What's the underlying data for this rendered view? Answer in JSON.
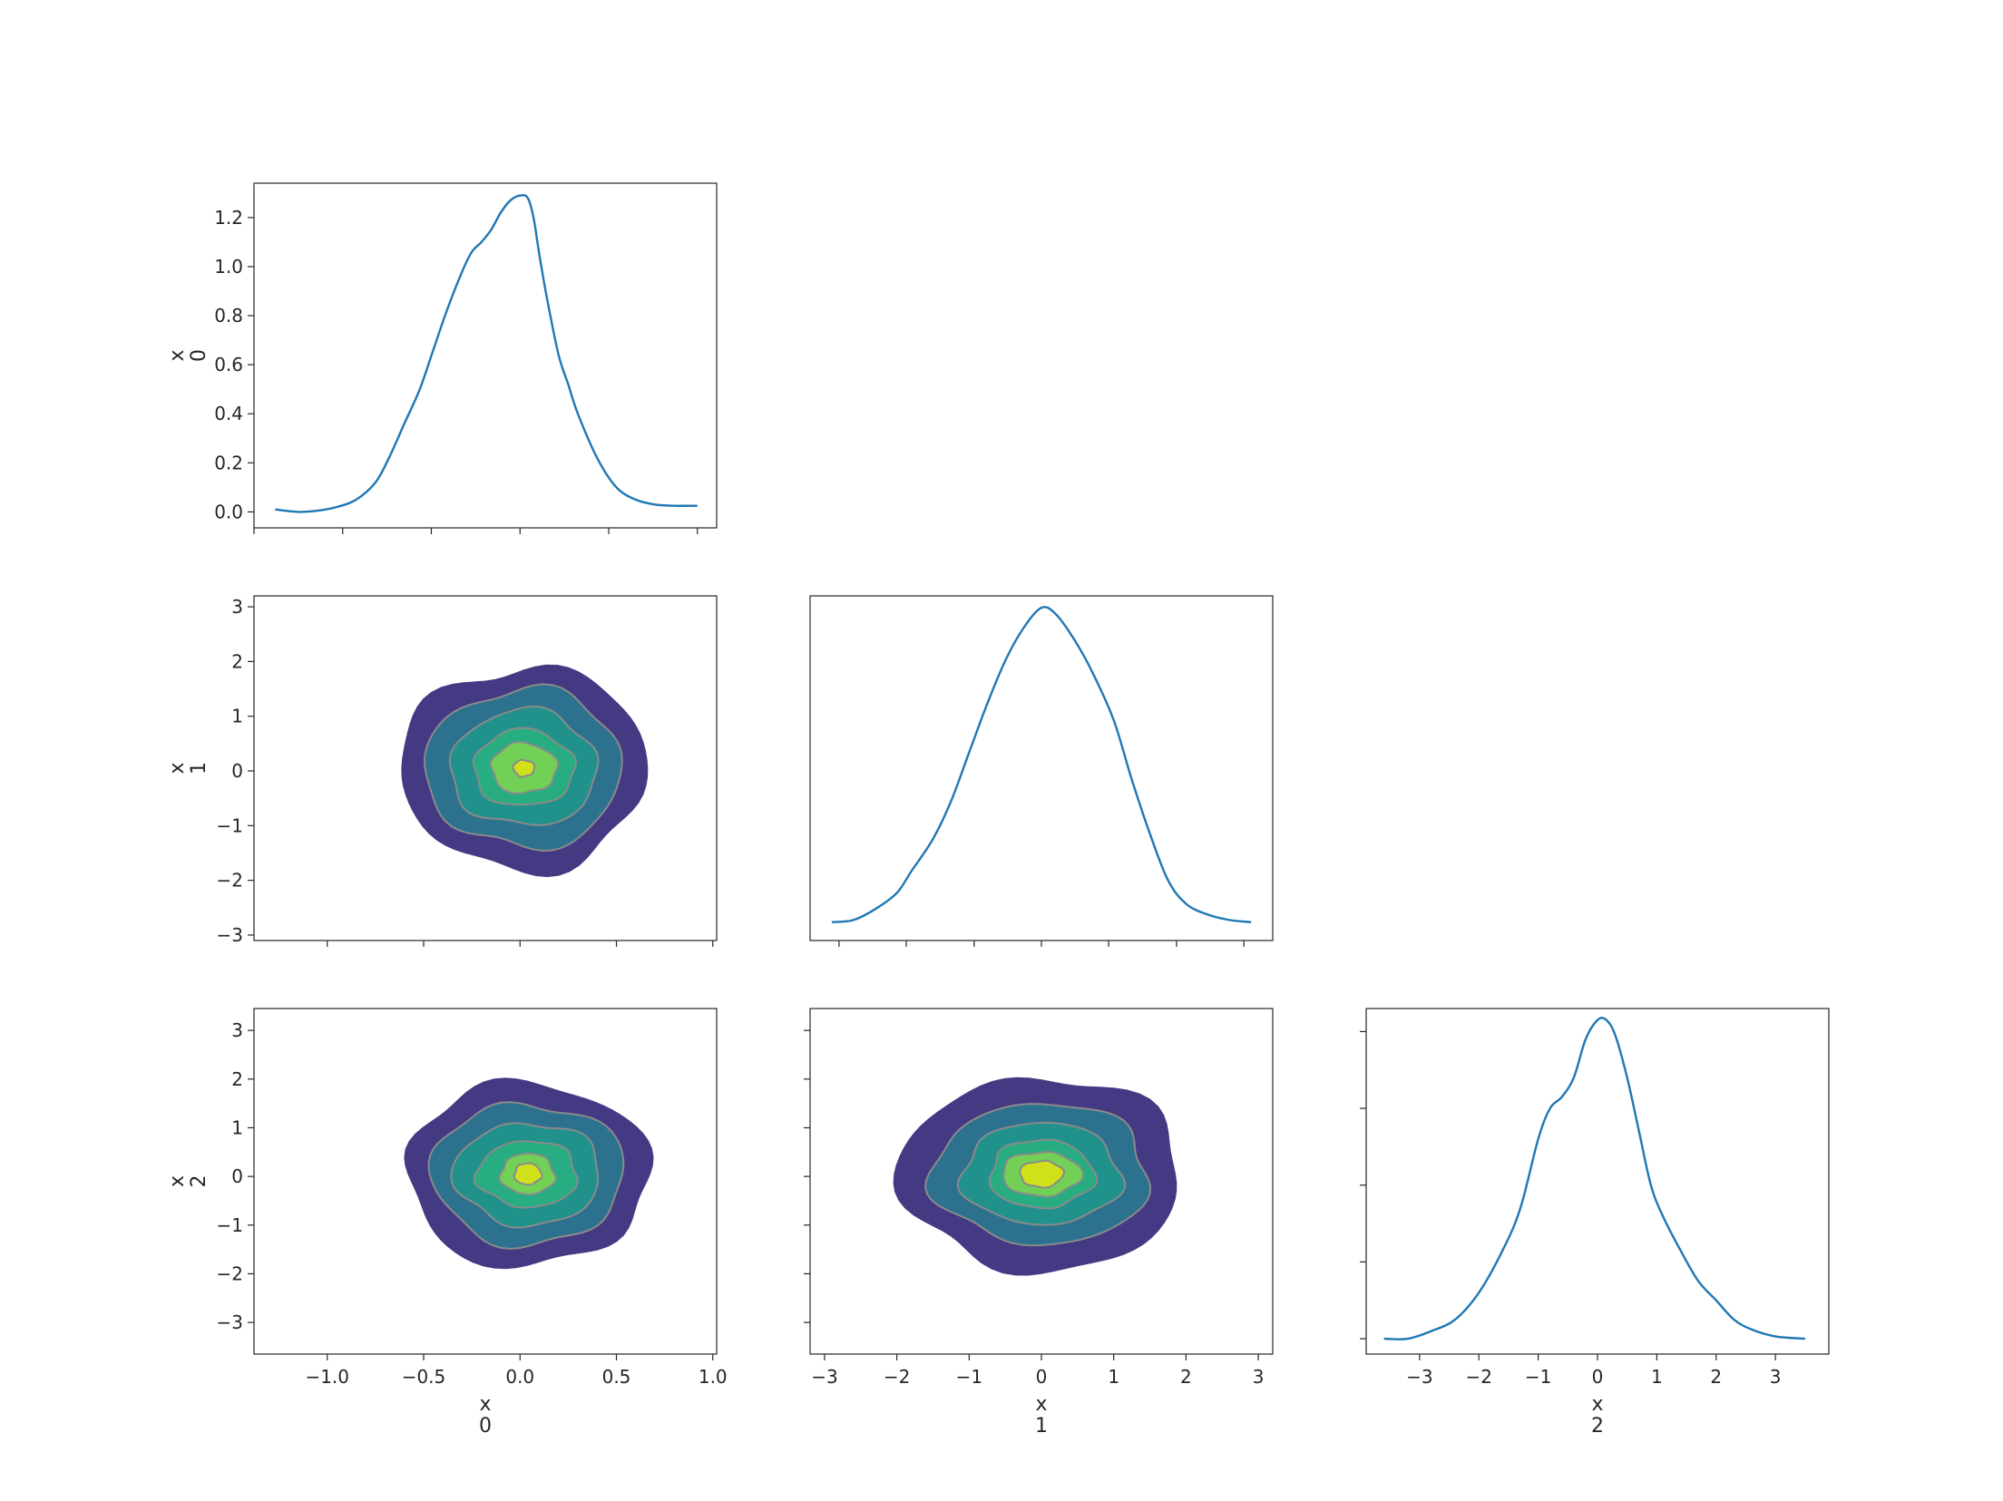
{
  "chart_data": [
    {
      "id": "diag-0",
      "type": "line",
      "title": "",
      "ylabel": "x\n0",
      "xlim": [
        -1.38,
        1.02
      ],
      "ylim": [
        -0.065,
        1.34
      ],
      "yticks": [
        0.0,
        0.2,
        0.4,
        0.6,
        0.8,
        1.0,
        1.2
      ],
      "ytick_labels": [
        "0.0",
        "0.2",
        "0.4",
        "0.6",
        "0.8",
        "1.0",
        "1.2"
      ],
      "xticks": [
        -1.38,
        -0.92,
        -0.46,
        0.0,
        0.46,
        0.92
      ],
      "grid": false,
      "series": [
        {
          "x": [
            -1.27,
            -1.15,
            -1.05,
            -0.95,
            -0.85,
            -0.75,
            -0.68,
            -0.6,
            -0.52,
            -0.45,
            -0.38,
            -0.3,
            -0.25,
            -0.2,
            -0.15,
            -0.1,
            -0.05,
            0.0,
            0.04,
            0.07,
            0.1,
            0.14,
            0.2,
            0.25,
            0.3,
            0.4,
            0.5,
            0.6,
            0.7,
            0.8,
            0.92
          ],
          "y": [
            0.01,
            0.0,
            0.005,
            0.02,
            0.05,
            0.12,
            0.22,
            0.36,
            0.5,
            0.66,
            0.82,
            0.98,
            1.06,
            1.1,
            1.15,
            1.22,
            1.27,
            1.29,
            1.28,
            1.2,
            1.05,
            0.87,
            0.64,
            0.52,
            0.4,
            0.22,
            0.1,
            0.05,
            0.03,
            0.025,
            0.025
          ]
        }
      ]
    },
    {
      "id": "joint-1-0",
      "type": "heatmap",
      "title": "",
      "ylabel": "x\n1",
      "xlim": [
        -1.38,
        1.02
      ],
      "ylim": [
        -3.1,
        3.2
      ],
      "yticks": [
        -3,
        -2,
        -1,
        0,
        1,
        2,
        3
      ],
      "ytick_labels": [
        "−3",
        "−2",
        "−1",
        "0",
        "1",
        "2",
        "3"
      ],
      "xticks": [
        -1.0,
        -0.5,
        0.0,
        0.5,
        1.0
      ],
      "center": [
        0.02,
        0.05
      ],
      "levels": [
        {
          "rx": 0.64,
          "ry": 1.86,
          "color": "#443983"
        },
        {
          "rx": 0.51,
          "ry": 1.45,
          "color": "#2c728e"
        },
        {
          "rx": 0.38,
          "ry": 1.06,
          "color": "#21918c"
        },
        {
          "rx": 0.26,
          "ry": 0.7,
          "color": "#27ad81"
        },
        {
          "rx": 0.17,
          "ry": 0.46,
          "color": "#73d056"
        },
        {
          "rx": 0.055,
          "ry": 0.15,
          "color": "#d0e11c"
        }
      ]
    },
    {
      "id": "diag-1",
      "type": "line",
      "title": "",
      "xlim": [
        -3.2,
        3.2
      ],
      "ylim": [
        -0.14,
        3.05
      ],
      "xticks": [
        -2.8,
        -1.87,
        -0.93,
        0.0,
        0.93,
        1.87,
        2.8
      ],
      "grid": false,
      "series": [
        {
          "x": [
            -2.9,
            -2.6,
            -2.3,
            -2.0,
            -1.8,
            -1.5,
            -1.25,
            -1.0,
            -0.75,
            -0.5,
            -0.25,
            0.0,
            0.2,
            0.45,
            0.7,
            1.0,
            1.25,
            1.5,
            1.75,
            2.0,
            2.3,
            2.6,
            2.9
          ],
          "y": [
            0.03,
            0.05,
            0.15,
            0.3,
            0.5,
            0.8,
            1.15,
            1.6,
            2.05,
            2.45,
            2.75,
            2.94,
            2.88,
            2.65,
            2.35,
            1.9,
            1.35,
            0.85,
            0.42,
            0.2,
            0.1,
            0.05,
            0.03
          ]
        }
      ]
    },
    {
      "id": "joint-2-0",
      "type": "heatmap",
      "title": "",
      "ylabel": "x\n2",
      "xlabel": "x\n0",
      "xlim": [
        -1.38,
        1.02
      ],
      "ylim": [
        -3.65,
        3.45
      ],
      "yticks": [
        -3,
        -2,
        -1,
        0,
        1,
        2,
        3
      ],
      "ytick_labels": [
        "−3",
        "−2",
        "−1",
        "0",
        "1",
        "2",
        "3"
      ],
      "xticks": [
        -1.0,
        -0.5,
        0.0,
        0.5,
        1.0
      ],
      "xtick_labels": [
        "−1.0",
        "−0.5",
        "0.0",
        "0.5",
        "1.0"
      ],
      "center": [
        0.04,
        0.05
      ],
      "levels": [
        {
          "rx": 0.63,
          "ry": 1.9,
          "color": "#443983"
        },
        {
          "rx": 0.5,
          "ry": 1.45,
          "color": "#2c728e"
        },
        {
          "rx": 0.38,
          "ry": 1.05,
          "color": "#21918c"
        },
        {
          "rx": 0.26,
          "ry": 0.68,
          "color": "#27ad81"
        },
        {
          "rx": 0.14,
          "ry": 0.42,
          "color": "#73d056"
        },
        {
          "rx": 0.07,
          "ry": 0.22,
          "color": "#d0e11c"
        }
      ]
    },
    {
      "id": "joint-2-1",
      "type": "heatmap",
      "title": "",
      "xlabel": "x\n1",
      "xlim": [
        -3.2,
        3.2
      ],
      "ylim": [
        -3.65,
        3.45
      ],
      "xticks": [
        -3,
        -2,
        -1,
        0,
        1,
        2,
        3
      ],
      "xtick_labels": [
        "−3",
        "−2",
        "−1",
        "0",
        "1",
        "2",
        "3"
      ],
      "yticks": [
        -3,
        -2,
        -1,
        0,
        1,
        2,
        3
      ],
      "center": [
        0.0,
        0.05
      ],
      "levels": [
        {
          "rx": 1.95,
          "ry": 2.0,
          "color": "#443983"
        },
        {
          "rx": 1.5,
          "ry": 1.45,
          "color": "#2c728e"
        },
        {
          "rx": 1.1,
          "ry": 1.05,
          "color": "#21918c"
        },
        {
          "rx": 0.72,
          "ry": 0.7,
          "color": "#27ad81"
        },
        {
          "rx": 0.55,
          "ry": 0.45,
          "color": "#73d056"
        },
        {
          "rx": 0.3,
          "ry": 0.27,
          "color": "#d0e11c"
        }
      ]
    },
    {
      "id": "diag-2",
      "type": "line",
      "title": "",
      "xlabel": "x\n2",
      "xlim": [
        -3.9,
        3.9
      ],
      "ylim": [
        -0.02,
        0.43
      ],
      "xticks": [
        -3,
        -2,
        -1,
        0,
        1,
        2,
        3
      ],
      "xtick_labels": [
        "−3",
        "−2",
        "−1",
        "0",
        "1",
        "2",
        "3"
      ],
      "yticks": [
        0.0,
        0.1,
        0.2,
        0.3,
        0.4
      ],
      "grid": false,
      "series": [
        {
          "x": [
            -3.6,
            -3.2,
            -2.8,
            -2.4,
            -2.0,
            -1.6,
            -1.3,
            -1.0,
            -0.8,
            -0.6,
            -0.4,
            -0.2,
            0.0,
            0.15,
            0.3,
            0.5,
            0.7,
            0.9,
            1.1,
            1.4,
            1.7,
            2.0,
            2.3,
            2.6,
            3.0,
            3.5
          ],
          "y": [
            0.0,
            0.0,
            0.01,
            0.025,
            0.06,
            0.115,
            0.17,
            0.26,
            0.3,
            0.315,
            0.34,
            0.39,
            0.415,
            0.415,
            0.395,
            0.34,
            0.27,
            0.2,
            0.16,
            0.115,
            0.075,
            0.05,
            0.025,
            0.012,
            0.003,
            0.0
          ]
        }
      ]
    }
  ]
}
